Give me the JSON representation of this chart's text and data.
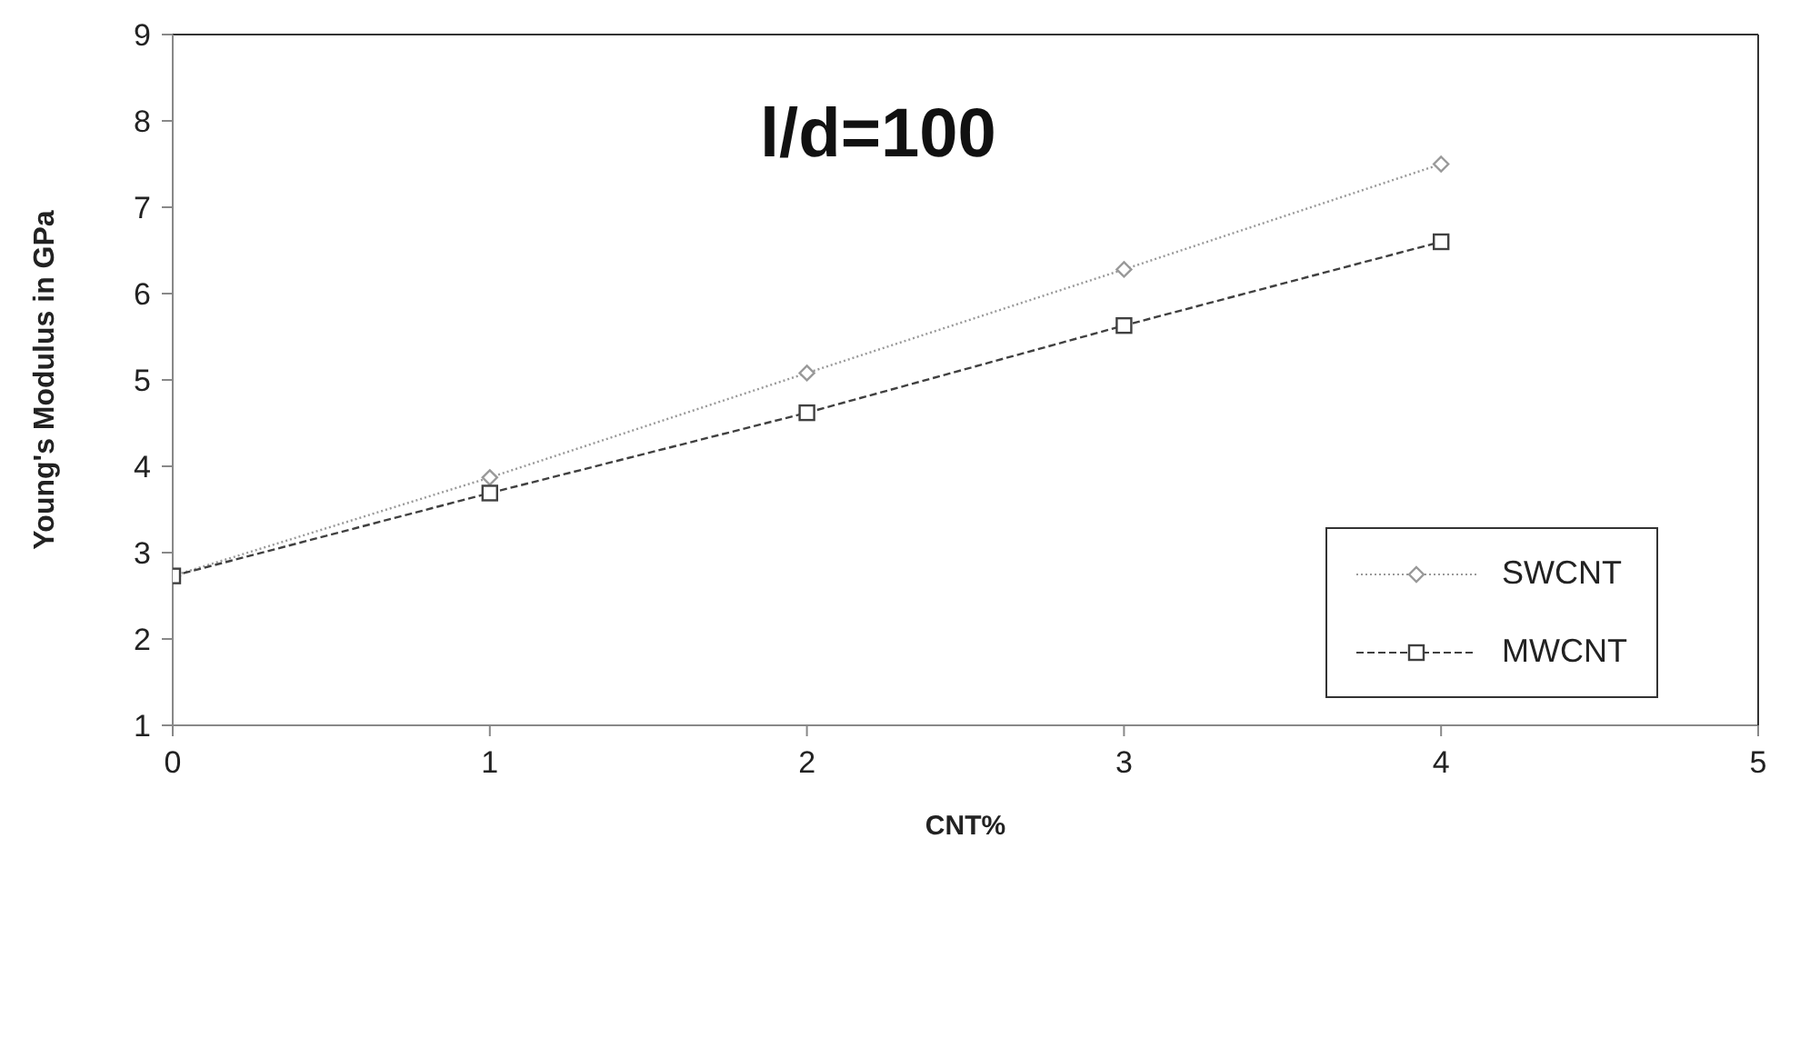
{
  "chart_data": {
    "type": "line",
    "title": "l/d=100",
    "xlabel": "CNT%",
    "ylabel": "Young's Modulus in GPa",
    "x": [
      0,
      1,
      2,
      3,
      4
    ],
    "series": [
      {
        "name": "SWCNT",
        "color": "#999999",
        "marker": "diamond",
        "line_style": "dotted",
        "values": [
          2.73,
          3.87,
          5.08,
          6.28,
          7.5
        ]
      },
      {
        "name": "MWCNT",
        "color": "#404040",
        "marker": "square",
        "line_style": "dashed",
        "values": [
          2.73,
          3.69,
          4.62,
          5.63,
          6.6
        ]
      }
    ],
    "xlim": [
      0,
      5
    ],
    "xticks": [
      0,
      1,
      2,
      3,
      4,
      5
    ],
    "ylim": [
      1,
      9
    ],
    "yticks": [
      1,
      2,
      3,
      4,
      5,
      6,
      7,
      8,
      9
    ],
    "grid": false,
    "legend": "right"
  }
}
